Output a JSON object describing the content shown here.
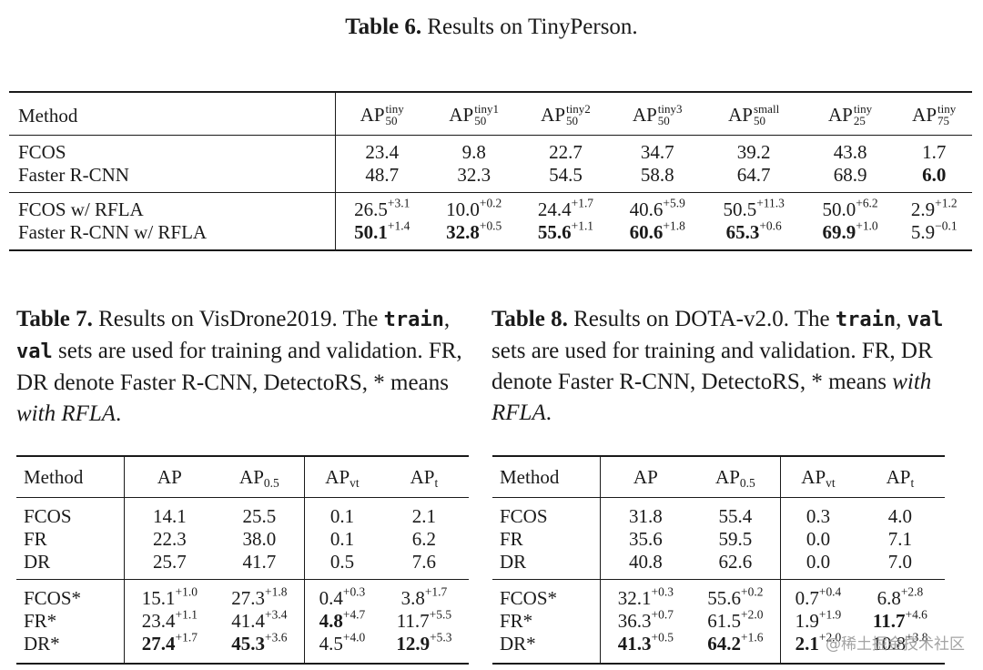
{
  "table6": {
    "label": "Table 6.",
    "caption": "Results on TinyPerson.",
    "method_header": "Method",
    "headers": [
      {
        "base": "AP",
        "sup": "tiny",
        "sub": "50"
      },
      {
        "base": "AP",
        "sup": "tiny1",
        "sub": "50"
      },
      {
        "base": "AP",
        "sup": "tiny2",
        "sub": "50"
      },
      {
        "base": "AP",
        "sup": "tiny3",
        "sub": "50"
      },
      {
        "base": "AP",
        "sup": "small",
        "sub": "50"
      },
      {
        "base": "AP",
        "sup": "tiny",
        "sub": "25"
      },
      {
        "base": "AP",
        "sup": "tiny",
        "sub": "75"
      }
    ],
    "rows": [
      {
        "method": "FCOS",
        "cells": [
          {
            "v": "23.4"
          },
          {
            "v": "9.8"
          },
          {
            "v": "22.7"
          },
          {
            "v": "34.7"
          },
          {
            "v": "39.2"
          },
          {
            "v": "43.8"
          },
          {
            "v": "1.7"
          }
        ]
      },
      {
        "method": "Faster R-CNN",
        "cells": [
          {
            "v": "48.7"
          },
          {
            "v": "32.3"
          },
          {
            "v": "54.5"
          },
          {
            "v": "58.8"
          },
          {
            "v": "64.7"
          },
          {
            "v": "68.9"
          },
          {
            "v": "6.0",
            "b": true
          }
        ]
      },
      {
        "method": "FCOS w/ RFLA",
        "cells": [
          {
            "v": "26.5",
            "d": "+3.1"
          },
          {
            "v": "10.0",
            "d": "+0.2"
          },
          {
            "v": "24.4",
            "d": "+1.7"
          },
          {
            "v": "40.6",
            "d": "+5.9"
          },
          {
            "v": "50.5",
            "d": "+11.3"
          },
          {
            "v": "50.0",
            "d": "+6.2"
          },
          {
            "v": "2.9",
            "d": "+1.2"
          }
        ]
      },
      {
        "method": "Faster R-CNN w/ RFLA",
        "cells": [
          {
            "v": "50.1",
            "d": "+1.4",
            "b": true
          },
          {
            "v": "32.8",
            "d": "+0.5",
            "b": true
          },
          {
            "v": "55.6",
            "d": "+1.1",
            "b": true
          },
          {
            "v": "60.6",
            "d": "+1.8",
            "b": true
          },
          {
            "v": "65.3",
            "d": "+0.6",
            "b": true
          },
          {
            "v": "69.9",
            "d": "+1.0",
            "b": true
          },
          {
            "v": "5.9",
            "d": "−0.1"
          }
        ]
      }
    ]
  },
  "table7": {
    "label": "Table 7.",
    "caption_a": "Results on VisDrone2019. The",
    "train": "train",
    "sep": ", ",
    "val": "val",
    "caption_b": "sets are used for training and validation. FR, DR denote Faster R-CNN, DetectoRS, * means",
    "caption_em": "with RFLA",
    "caption_end": ".",
    "method_header": "Method",
    "headers": [
      {
        "base": "AP"
      },
      {
        "base": "AP",
        "sub": "0.5"
      },
      {
        "base": "AP",
        "sub": "vt"
      },
      {
        "base": "AP",
        "sub": "t"
      }
    ],
    "rows": [
      {
        "method": "FCOS",
        "cells": [
          {
            "v": "14.1"
          },
          {
            "v": "25.5"
          },
          {
            "v": "0.1"
          },
          {
            "v": "2.1"
          }
        ]
      },
      {
        "method": "FR",
        "cells": [
          {
            "v": "22.3"
          },
          {
            "v": "38.0"
          },
          {
            "v": "0.1"
          },
          {
            "v": "6.2"
          }
        ]
      },
      {
        "method": "DR",
        "cells": [
          {
            "v": "25.7"
          },
          {
            "v": "41.7"
          },
          {
            "v": "0.5"
          },
          {
            "v": "7.6"
          }
        ]
      },
      {
        "method": "FCOS*",
        "cells": [
          {
            "v": "15.1",
            "d": "+1.0"
          },
          {
            "v": "27.3",
            "d": "+1.8"
          },
          {
            "v": "0.4",
            "d": "+0.3"
          },
          {
            "v": "3.8",
            "d": "+1.7"
          }
        ]
      },
      {
        "method": "FR*",
        "cells": [
          {
            "v": "23.4",
            "d": "+1.1"
          },
          {
            "v": "41.4",
            "d": "+3.4"
          },
          {
            "v": "4.8",
            "d": "+4.7",
            "b": true
          },
          {
            "v": "11.7",
            "d": "+5.5"
          }
        ]
      },
      {
        "method": "DR*",
        "cells": [
          {
            "v": "27.4",
            "d": "+1.7",
            "b": true
          },
          {
            "v": "45.3",
            "d": "+3.6",
            "b": true
          },
          {
            "v": "4.5",
            "d": "+4.0"
          },
          {
            "v": "12.9",
            "d": "+5.3",
            "b": true
          }
        ]
      }
    ]
  },
  "table8": {
    "label": "Table 8.",
    "caption_a": "Results on DOTA-v2.0. The",
    "train": "train",
    "sep": ", ",
    "val": "val",
    "caption_b": "sets are used for training and validation. FR, DR denote Faster R-CNN, DetectoRS, * means",
    "caption_em": "with RFLA",
    "caption_end": ".",
    "method_header": "Method",
    "headers": [
      {
        "base": "AP"
      },
      {
        "base": "AP",
        "sub": "0.5"
      },
      {
        "base": "AP",
        "sub": "vt"
      },
      {
        "base": "AP",
        "sub": "t"
      }
    ],
    "rows": [
      {
        "method": "FCOS",
        "cells": [
          {
            "v": "31.8"
          },
          {
            "v": "55.4"
          },
          {
            "v": "0.3"
          },
          {
            "v": "4.0"
          }
        ]
      },
      {
        "method": "FR",
        "cells": [
          {
            "v": "35.6"
          },
          {
            "v": "59.5"
          },
          {
            "v": "0.0"
          },
          {
            "v": "7.1"
          }
        ]
      },
      {
        "method": "DR",
        "cells": [
          {
            "v": "40.8"
          },
          {
            "v": "62.6"
          },
          {
            "v": "0.0"
          },
          {
            "v": "7.0"
          }
        ]
      },
      {
        "method": "FCOS*",
        "cells": [
          {
            "v": "32.1",
            "d": "+0.3"
          },
          {
            "v": "55.6",
            "d": "+0.2"
          },
          {
            "v": "0.7",
            "d": "+0.4"
          },
          {
            "v": "6.8",
            "d": "+2.8"
          }
        ]
      },
      {
        "method": "FR*",
        "cells": [
          {
            "v": "36.3",
            "d": "+0.7"
          },
          {
            "v": "61.5",
            "d": "+2.0"
          },
          {
            "v": "1.9",
            "d": "+1.9"
          },
          {
            "v": "11.7",
            "d": "+4.6",
            "b": true
          }
        ]
      },
      {
        "method": "DR*",
        "cells": [
          {
            "v": "41.3",
            "d": "+0.5",
            "b": true
          },
          {
            "v": "64.2",
            "d": "+1.6",
            "b": true
          },
          {
            "v": "2.1",
            "d": "+2.0",
            "b": true
          },
          {
            "v": "10.8",
            "d": "+3.8"
          }
        ]
      }
    ]
  },
  "watermark": "@稀土掘金技术社区"
}
